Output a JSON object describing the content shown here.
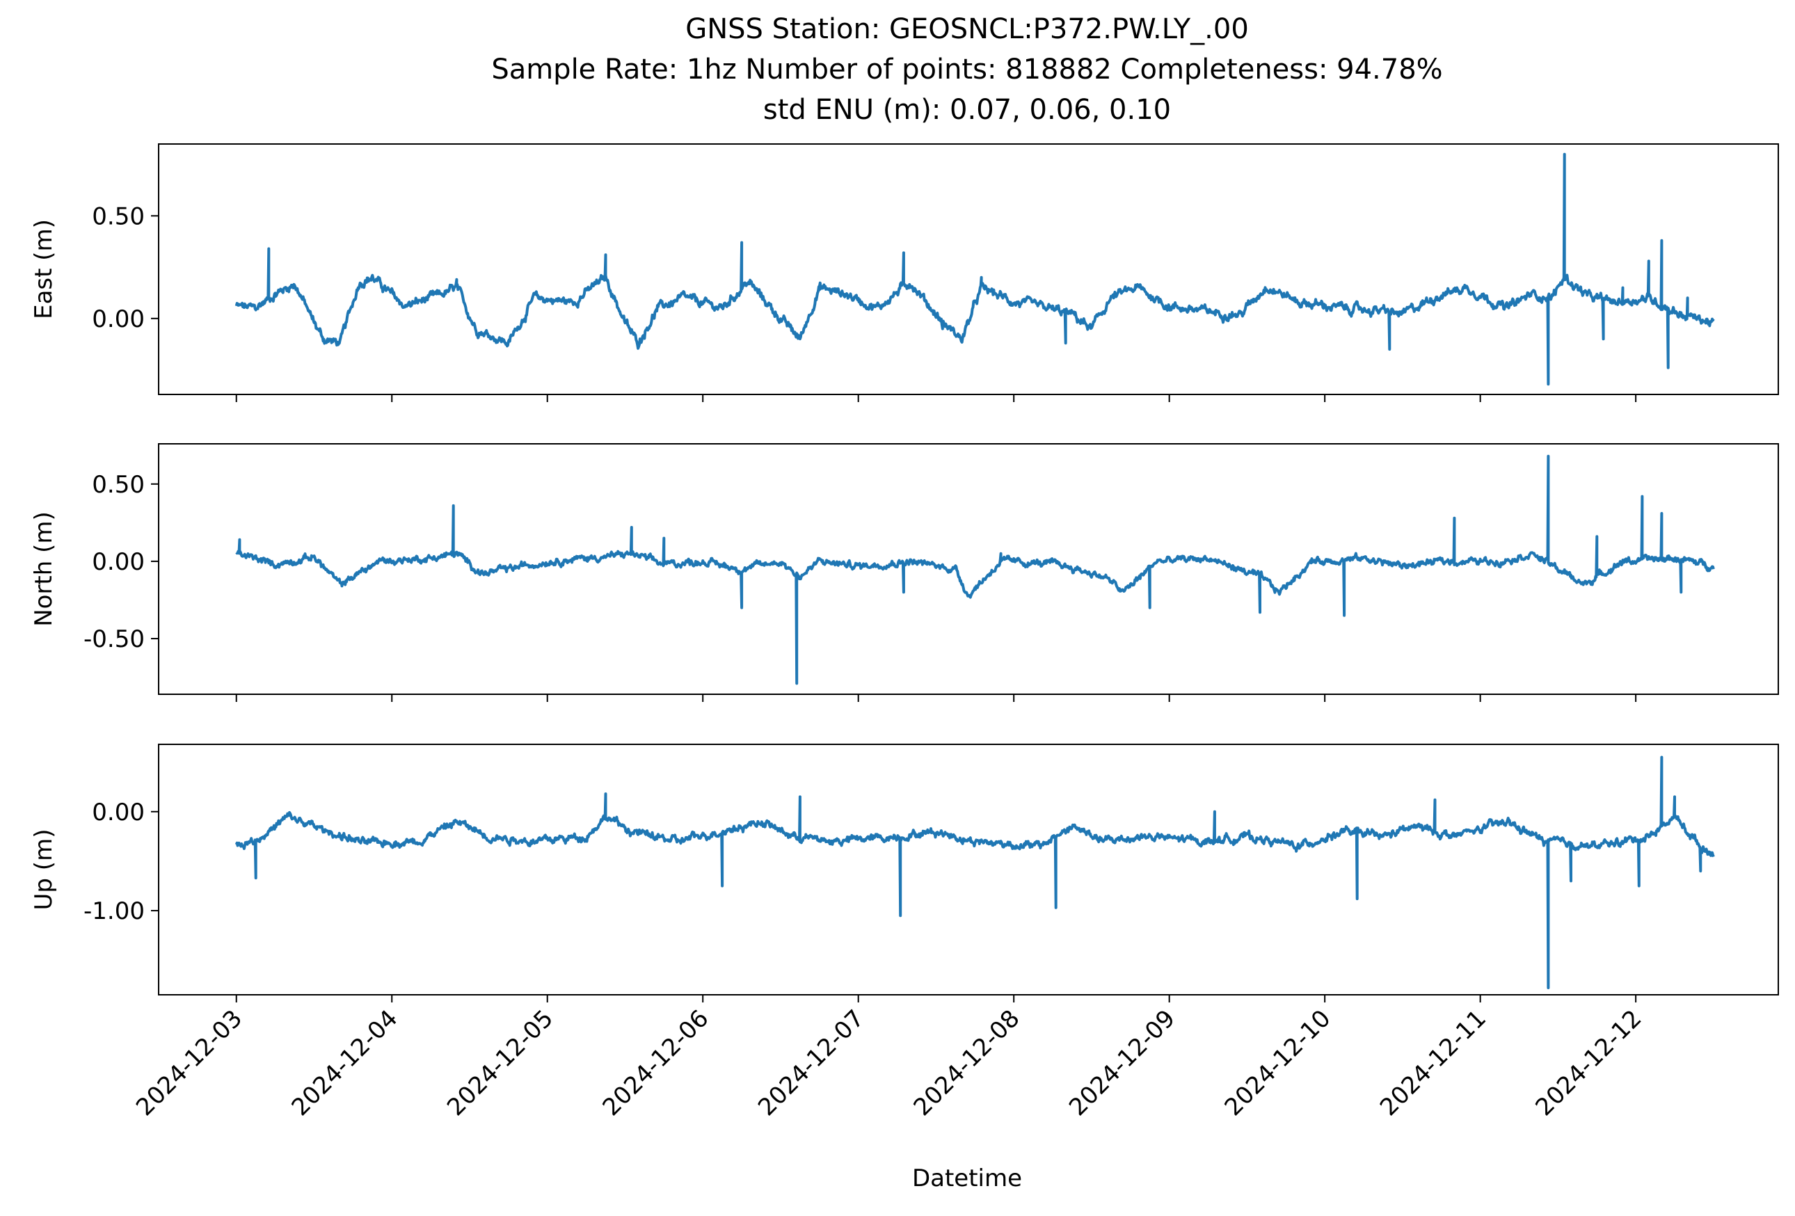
{
  "chart_data": {
    "type": "line",
    "title_lines": [
      "GNSS Station: GEOSNCL:P372.PW.LY_.00",
      "Sample Rate: 1hz   Number of points: 818882    Completeness:  94.78%",
      "std ENU (m):  0.07, 0.06, 0.10"
    ],
    "xlabel": "Datetime",
    "x_unit": "date",
    "x_ticks": [
      "2024-12-03",
      "2024-12-04",
      "2024-12-05",
      "2024-12-06",
      "2024-12-07",
      "2024-12-08",
      "2024-12-09",
      "2024-12-10",
      "2024-12-11",
      "2024-12-12"
    ],
    "xlim": [
      "2024-12-02T12:00",
      "2024-12-12T22:00"
    ],
    "x_data_range": [
      "2024-12-03T00:00",
      "2024-12-12T12:00"
    ],
    "line_color": "#1f77b4",
    "panels": [
      {
        "ylabel": "East (m)",
        "ylim": [
          -0.37,
          0.85
        ],
        "yticks": [
          0.0,
          0.5
        ],
        "ytick_labels": [
          "0.00",
          "0.50"
        ],
        "keypoints": [
          [
            "2024-12-03T00:00",
            0.06
          ],
          [
            "2024-12-03T03:00",
            0.05
          ],
          [
            "2024-12-03T06:00",
            0.12
          ],
          [
            "2024-12-03T09:00",
            0.17
          ],
          [
            "2024-12-03T12:00",
            -0.02
          ],
          [
            "2024-12-03T13:30",
            -0.1
          ],
          [
            "2024-12-03T16:00",
            -0.12
          ],
          [
            "2024-12-03T19:00",
            0.18
          ],
          [
            "2024-12-03T21:00",
            0.2
          ],
          [
            "2024-12-04T02:00",
            0.06
          ],
          [
            "2024-12-04T08:00",
            0.12
          ],
          [
            "2024-12-04T10:00",
            0.15
          ],
          [
            "2024-12-04T13:00",
            -0.05
          ],
          [
            "2024-12-04T18:00",
            -0.12
          ],
          [
            "2024-12-04T22:00",
            0.1
          ],
          [
            "2024-12-05T04:00",
            0.08
          ],
          [
            "2024-12-05T09:00",
            0.2
          ],
          [
            "2024-12-05T12:00",
            -0.02
          ],
          [
            "2024-12-05T14:00",
            -0.12
          ],
          [
            "2024-12-05T17:00",
            0.05
          ],
          [
            "2024-12-05T21:00",
            0.1
          ],
          [
            "2024-12-06T03:00",
            0.05
          ],
          [
            "2024-12-06T07:00",
            0.18
          ],
          [
            "2024-12-06T12:00",
            0.0
          ],
          [
            "2024-12-06T15:00",
            -0.1
          ],
          [
            "2024-12-06T18:00",
            0.15
          ],
          [
            "2024-12-06T22:00",
            0.12
          ],
          [
            "2024-12-07T03:00",
            0.05
          ],
          [
            "2024-12-07T08:00",
            0.18
          ],
          [
            "2024-12-07T13:00",
            -0.02
          ],
          [
            "2024-12-07T16:00",
            -0.1
          ],
          [
            "2024-12-07T19:00",
            0.15
          ],
          [
            "2024-12-08T00:00",
            0.08
          ],
          [
            "2024-12-08T05:00",
            0.05
          ],
          [
            "2024-12-08T09:00",
            0.02
          ],
          [
            "2024-12-08T12:00",
            -0.05
          ],
          [
            "2024-12-08T15:00",
            0.1
          ],
          [
            "2024-12-08T19:00",
            0.15
          ],
          [
            "2024-12-09T00:00",
            0.06
          ],
          [
            "2024-12-09T07:00",
            0.03
          ],
          [
            "2024-12-09T11:00",
            0.02
          ],
          [
            "2024-12-09T15:00",
            0.16
          ],
          [
            "2024-12-09T20:00",
            0.08
          ],
          [
            "2024-12-10T03:00",
            0.05
          ],
          [
            "2024-12-10T08:00",
            0.04
          ],
          [
            "2024-12-10T12:00",
            0.02
          ],
          [
            "2024-12-10T18:00",
            0.12
          ],
          [
            "2024-12-10T22:00",
            0.15
          ],
          [
            "2024-12-11T04:00",
            0.05
          ],
          [
            "2024-12-11T08:00",
            0.12
          ],
          [
            "2024-12-11T11:00",
            0.1
          ],
          [
            "2024-12-11T13:00",
            0.2
          ],
          [
            "2024-12-11T17:00",
            0.1
          ],
          [
            "2024-12-11T21:00",
            0.08
          ],
          [
            "2024-12-12T02:00",
            0.1
          ],
          [
            "2024-12-12T07:00",
            0.02
          ],
          [
            "2024-12-12T12:00",
            -0.02
          ]
        ],
        "spikes": [
          [
            "2024-12-03T05:00",
            0.34
          ],
          [
            "2024-12-04T10:00",
            0.19
          ],
          [
            "2024-12-05T09:00",
            0.31
          ],
          [
            "2024-12-06T06:00",
            0.37
          ],
          [
            "2024-12-06T18:00",
            0.14
          ],
          [
            "2024-12-07T07:00",
            0.32
          ],
          [
            "2024-12-07T13:00",
            -0.05
          ],
          [
            "2024-12-07T19:00",
            0.2
          ],
          [
            "2024-12-08T08:00",
            -0.12
          ],
          [
            "2024-12-09T13:00",
            0.08
          ],
          [
            "2024-12-10T10:00",
            -0.15
          ],
          [
            "2024-12-11T10:30",
            -0.32
          ],
          [
            "2024-12-11T13:00",
            0.8
          ],
          [
            "2024-12-11T19:00",
            -0.1
          ],
          [
            "2024-12-11T22:00",
            0.15
          ],
          [
            "2024-12-12T02:00",
            0.28
          ],
          [
            "2024-12-12T04:00",
            0.38
          ],
          [
            "2024-12-12T05:00",
            -0.24
          ],
          [
            "2024-12-12T08:00",
            0.1
          ]
        ],
        "noise_amplitude": 0.025
      },
      {
        "ylabel": "North (m)",
        "ylim": [
          -0.86,
          0.76
        ],
        "yticks": [
          -0.5,
          0.0,
          0.5
        ],
        "ytick_labels": [
          "-0.50",
          "0.00",
          "0.50"
        ],
        "keypoints": [
          [
            "2024-12-03T00:00",
            0.05
          ],
          [
            "2024-12-03T06:00",
            -0.02
          ],
          [
            "2024-12-03T12:00",
            0.03
          ],
          [
            "2024-12-03T16:00",
            -0.15
          ],
          [
            "2024-12-03T22:00",
            0.0
          ],
          [
            "2024-12-04T06:00",
            0.02
          ],
          [
            "2024-12-04T10:00",
            0.05
          ],
          [
            "2024-12-04T14:00",
            -0.08
          ],
          [
            "2024-12-04T18:00",
            -0.05
          ],
          [
            "2024-12-05T00:00",
            0.0
          ],
          [
            "2024-12-05T09:00",
            0.03
          ],
          [
            "2024-12-05T13:00",
            0.05
          ],
          [
            "2024-12-05T18:00",
            -0.02
          ],
          [
            "2024-12-06T00:00",
            0.0
          ],
          [
            "2024-12-06T06:00",
            -0.05
          ],
          [
            "2024-12-06T12:00",
            0.0
          ],
          [
            "2024-12-06T15:00",
            -0.1
          ],
          [
            "2024-12-06T18:00",
            0.0
          ],
          [
            "2024-12-07T00:00",
            -0.03
          ],
          [
            "2024-12-07T08:00",
            0.0
          ],
          [
            "2024-12-07T15:00",
            -0.05
          ],
          [
            "2024-12-07T17:00",
            -0.22
          ],
          [
            "2024-12-07T22:00",
            0.0
          ],
          [
            "2024-12-08T07:00",
            -0.02
          ],
          [
            "2024-12-08T14:00",
            -0.1
          ],
          [
            "2024-12-08T17:00",
            -0.2
          ],
          [
            "2024-12-08T22:00",
            0.0
          ],
          [
            "2024-12-09T06:00",
            0.02
          ],
          [
            "2024-12-09T14:00",
            -0.1
          ],
          [
            "2024-12-09T17:00",
            -0.2
          ],
          [
            "2024-12-09T22:00",
            0.0
          ],
          [
            "2024-12-10T06:00",
            0.02
          ],
          [
            "2024-12-10T12:00",
            -0.03
          ],
          [
            "2024-12-10T18:00",
            0.0
          ],
          [
            "2024-12-11T03:00",
            0.0
          ],
          [
            "2024-12-11T08:00",
            0.05
          ],
          [
            "2024-12-11T12:00",
            -0.05
          ],
          [
            "2024-12-11T16:00",
            -0.15
          ],
          [
            "2024-12-11T22:00",
            0.0
          ],
          [
            "2024-12-12T06:00",
            0.02
          ],
          [
            "2024-12-12T12:00",
            -0.03
          ]
        ],
        "spikes": [
          [
            "2024-12-03T00:30",
            0.14
          ],
          [
            "2024-12-04T09:30",
            0.36
          ],
          [
            "2024-12-05T13:00",
            0.22
          ],
          [
            "2024-12-05T18:00",
            0.15
          ],
          [
            "2024-12-06T06:00",
            -0.3
          ],
          [
            "2024-12-06T14:30",
            -0.79
          ],
          [
            "2024-12-07T07:00",
            -0.2
          ],
          [
            "2024-12-07T22:00",
            0.05
          ],
          [
            "2024-12-08T21:00",
            -0.3
          ],
          [
            "2024-12-09T14:00",
            -0.33
          ],
          [
            "2024-12-10T03:00",
            -0.35
          ],
          [
            "2024-12-10T20:00",
            0.28
          ],
          [
            "2024-12-11T10:30",
            0.68
          ],
          [
            "2024-12-11T18:00",
            0.16
          ],
          [
            "2024-12-12T01:00",
            0.42
          ],
          [
            "2024-12-12T04:00",
            0.31
          ],
          [
            "2024-12-12T07:00",
            -0.2
          ]
        ],
        "noise_amplitude": 0.025
      },
      {
        "ylabel": "Up (m)",
        "ylim": [
          -1.85,
          0.68
        ],
        "yticks": [
          -1.0,
          0.0
        ],
        "ytick_labels": [
          "-1.00",
          "0.00"
        ],
        "keypoints": [
          [
            "2024-12-03T00:00",
            -0.35
          ],
          [
            "2024-12-03T04:00",
            -0.25
          ],
          [
            "2024-12-03T08:00",
            -0.05
          ],
          [
            "2024-12-03T14:00",
            -0.2
          ],
          [
            "2024-12-03T20:00",
            -0.32
          ],
          [
            "2024-12-04T04:00",
            -0.3
          ],
          [
            "2024-12-04T10:00",
            -0.1
          ],
          [
            "2024-12-04T15:00",
            -0.25
          ],
          [
            "2024-12-04T22:00",
            -0.3
          ],
          [
            "2024-12-05T06:00",
            -0.25
          ],
          [
            "2024-12-05T09:00",
            -0.05
          ],
          [
            "2024-12-05T13:00",
            -0.2
          ],
          [
            "2024-12-05T20:00",
            -0.3
          ],
          [
            "2024-12-06T06:00",
            -0.15
          ],
          [
            "2024-12-06T09:00",
            -0.1
          ],
          [
            "2024-12-06T14:00",
            -0.25
          ],
          [
            "2024-12-06T20:00",
            -0.3
          ],
          [
            "2024-12-07T06:00",
            -0.25
          ],
          [
            "2024-12-07T12:00",
            -0.2
          ],
          [
            "2024-12-07T18:00",
            -0.3
          ],
          [
            "2024-12-08T04:00",
            -0.35
          ],
          [
            "2024-12-08T09:00",
            -0.15
          ],
          [
            "2024-12-08T14:00",
            -0.3
          ],
          [
            "2024-12-08T20:00",
            -0.25
          ],
          [
            "2024-12-09T06:00",
            -0.3
          ],
          [
            "2024-12-09T12:00",
            -0.25
          ],
          [
            "2024-12-09T20:00",
            -0.35
          ],
          [
            "2024-12-10T03:00",
            -0.2
          ],
          [
            "2024-12-10T09:00",
            -0.25
          ],
          [
            "2024-12-10T14:00",
            -0.15
          ],
          [
            "2024-12-10T20:00",
            -0.25
          ],
          [
            "2024-12-11T04:00",
            -0.1
          ],
          [
            "2024-12-11T10:00",
            -0.3
          ],
          [
            "2024-12-11T18:00",
            -0.35
          ],
          [
            "2024-12-12T02:00",
            -0.25
          ],
          [
            "2024-12-12T06:00",
            -0.05
          ],
          [
            "2024-12-12T10:00",
            -0.35
          ],
          [
            "2024-12-12T12:00",
            -0.42
          ]
        ],
        "spikes": [
          [
            "2024-12-03T03:00",
            -0.67
          ],
          [
            "2024-12-05T09:00",
            0.18
          ],
          [
            "2024-12-06T03:00",
            -0.75
          ],
          [
            "2024-12-06T15:00",
            0.15
          ],
          [
            "2024-12-07T06:30",
            -1.05
          ],
          [
            "2024-12-08T06:30",
            -0.97
          ],
          [
            "2024-12-09T07:00",
            0.0
          ],
          [
            "2024-12-10T05:00",
            -0.88
          ],
          [
            "2024-12-10T17:00",
            0.12
          ],
          [
            "2024-12-11T10:30",
            -1.78
          ],
          [
            "2024-12-11T14:00",
            -0.7
          ],
          [
            "2024-12-12T00:30",
            -0.75
          ],
          [
            "2024-12-12T04:00",
            0.55
          ],
          [
            "2024-12-12T06:00",
            0.15
          ],
          [
            "2024-12-12T10:00",
            -0.6
          ]
        ],
        "noise_amplitude": 0.045
      }
    ]
  }
}
